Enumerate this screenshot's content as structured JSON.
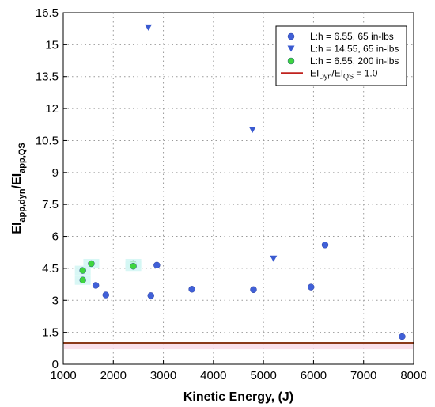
{
  "chart_data": {
    "type": "scatter",
    "xlabel": "Kinetic Energy, (J)",
    "ylabel": {
      "main": "EI",
      "sub": "app,dyn",
      "sep": "/EI",
      "sub2": "app,QS"
    },
    "xlim": [
      1000,
      8000
    ],
    "ylim": [
      0,
      16.5
    ],
    "xticks": [
      1000,
      2000,
      3000,
      4000,
      5000,
      6000,
      7000,
      8000
    ],
    "yticks": [
      0,
      1.5,
      3,
      4.5,
      6,
      7.5,
      9,
      10.5,
      12,
      13.5,
      15,
      16.5
    ],
    "yticks_labels": [
      "0",
      "1.5",
      "3",
      "4.5",
      "6",
      "7.5",
      "9",
      "10.5",
      "12",
      "13.5",
      "15",
      "16.5"
    ],
    "grid": true,
    "legend_position": "top-right",
    "colors": {
      "series1": "#4060d8",
      "series2": "#3a5ad0",
      "series3": "#3ed63e",
      "reference": "#c0221e"
    },
    "series": [
      {
        "name": "L:h = 6.55, 65 in-lbs",
        "marker": "circle",
        "points": [
          {
            "x": 1650,
            "y": 3.7
          },
          {
            "x": 1850,
            "y": 3.25
          },
          {
            "x": 2750,
            "y": 3.22
          },
          {
            "x": 2870,
            "y": 4.65
          },
          {
            "x": 3570,
            "y": 3.52
          },
          {
            "x": 4800,
            "y": 3.5
          },
          {
            "x": 5950,
            "y": 3.62
          },
          {
            "x": 6230,
            "y": 5.6
          },
          {
            "x": 7770,
            "y": 1.3
          }
        ]
      },
      {
        "name": "L:h = 14.55, 65 in-lbs",
        "marker": "triangle-down",
        "points": [
          {
            "x": 2700,
            "y": 15.8
          },
          {
            "x": 4780,
            "y": 11.0
          },
          {
            "x": 5200,
            "y": 4.95
          }
        ]
      },
      {
        "name": "L:h = 6.55, 200 in-lbs",
        "marker": "circle",
        "points": [
          {
            "x": 1390,
            "y": 4.4
          },
          {
            "x": 1390,
            "y": 3.95
          },
          {
            "x": 1560,
            "y": 4.72
          },
          {
            "x": 2400,
            "y": 4.72
          },
          {
            "x": 2400,
            "y": 4.6
          }
        ]
      }
    ],
    "reference_line": {
      "y": 1.0,
      "label": {
        "a": "EI",
        "a_sub": "Dyn",
        "b": "/EI",
        "b_sub": "QS",
        "rest": " = 1.0"
      }
    }
  }
}
